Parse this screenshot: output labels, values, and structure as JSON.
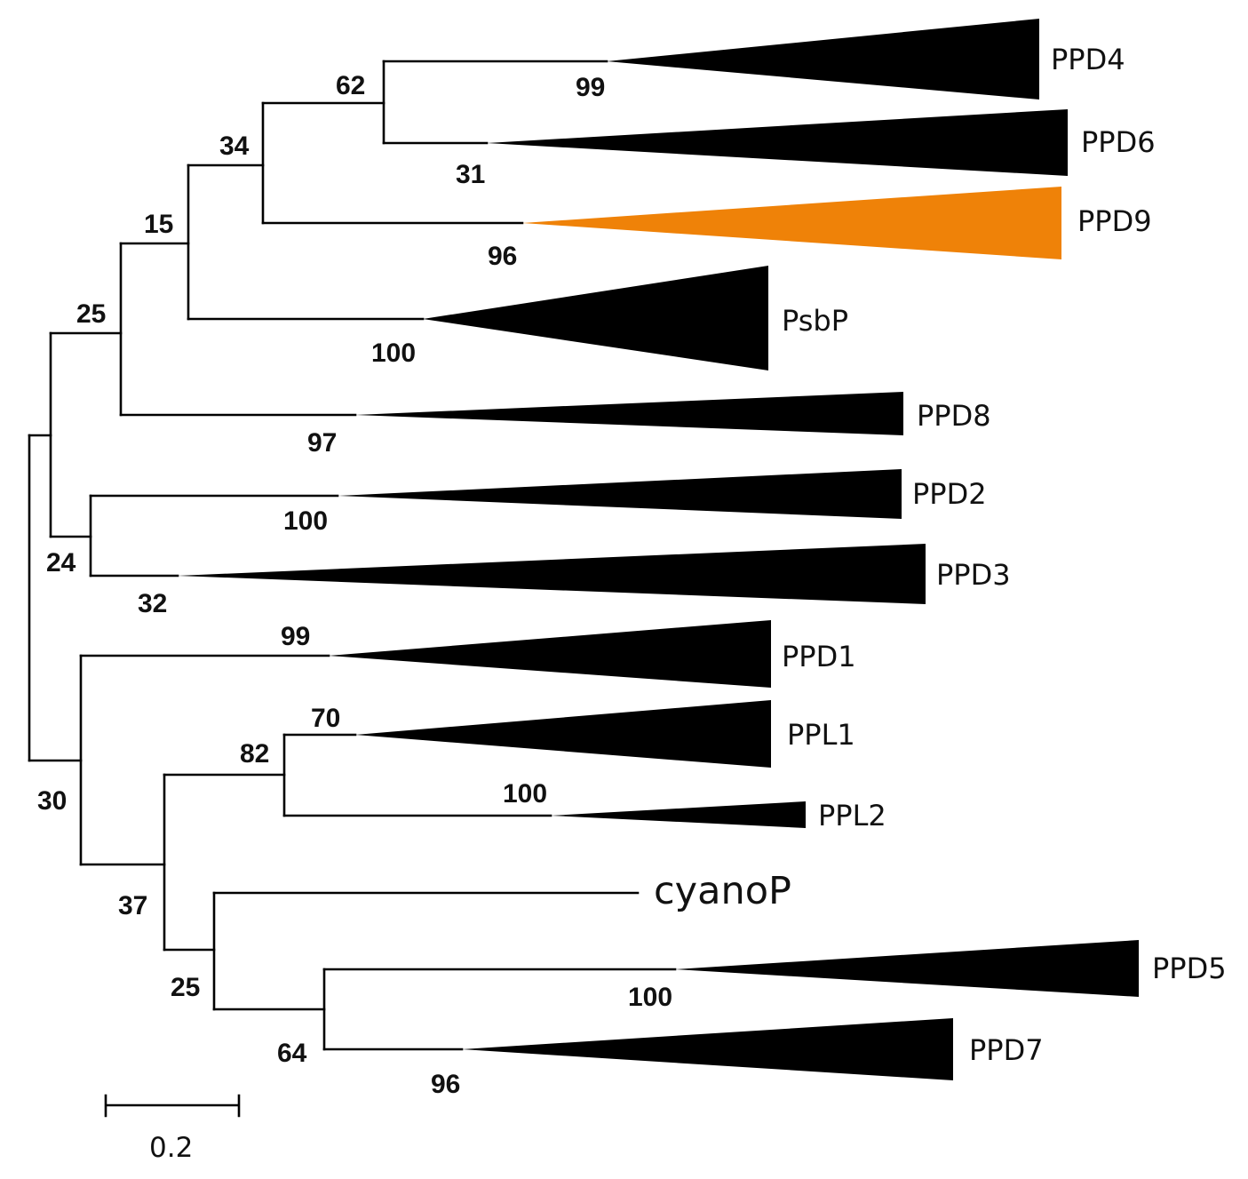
{
  "tree": {
    "taxa": [
      {
        "id": "ppd4",
        "label": "PPD4",
        "support": "99",
        "color": "#000000"
      },
      {
        "id": "ppd6",
        "label": "PPD6",
        "support": "31",
        "color": "#000000"
      },
      {
        "id": "ppd9",
        "label": "PPD9",
        "support": "96",
        "color": "#ef8208"
      },
      {
        "id": "psbp",
        "label": "PsbP",
        "support": "100",
        "color": "#000000"
      },
      {
        "id": "ppd8",
        "label": "PPD8",
        "support": "97",
        "color": "#000000"
      },
      {
        "id": "ppd2",
        "label": "PPD2",
        "support": "100",
        "color": "#000000"
      },
      {
        "id": "ppd3",
        "label": "PPD3",
        "support": "32",
        "color": "#000000"
      },
      {
        "id": "ppd1",
        "label": "PPD1",
        "support": "99",
        "color": "#000000"
      },
      {
        "id": "ppl1",
        "label": "PPL1",
        "support": "70",
        "color": "#000000"
      },
      {
        "id": "ppl2",
        "label": "PPL2",
        "support": "100",
        "color": "#000000"
      },
      {
        "id": "cyanop",
        "label": "cyanoP",
        "support": "",
        "color": "#000000"
      },
      {
        "id": "ppd5",
        "label": "PPD5",
        "support": "100",
        "color": "#000000"
      },
      {
        "id": "ppd7",
        "label": "PPD7",
        "support": "96",
        "color": "#000000"
      }
    ],
    "internal_nodes": [
      {
        "id": "n-ppd4-ppd6",
        "support": "62"
      },
      {
        "id": "n-ppd4-ppd9",
        "support": "34"
      },
      {
        "id": "n-ppd4-psbp",
        "support": "15"
      },
      {
        "id": "n-ppd4-ppd8",
        "support": "25"
      },
      {
        "id": "n-ppd2-ppd3",
        "support": "24"
      },
      {
        "id": "n-ppl1-ppl2",
        "support": "82"
      },
      {
        "id": "n-ppd5-ppd7",
        "support": "64"
      },
      {
        "id": "n-cyanop-ppd5",
        "support": "25"
      },
      {
        "id": "n-ppl-cyanop",
        "support": "37"
      },
      {
        "id": "n-ppd1-ppl",
        "support": "30"
      }
    ],
    "highlight_color": "#ef8208",
    "branch_color": "#000000"
  },
  "scale_bar": {
    "label": "0.2"
  }
}
